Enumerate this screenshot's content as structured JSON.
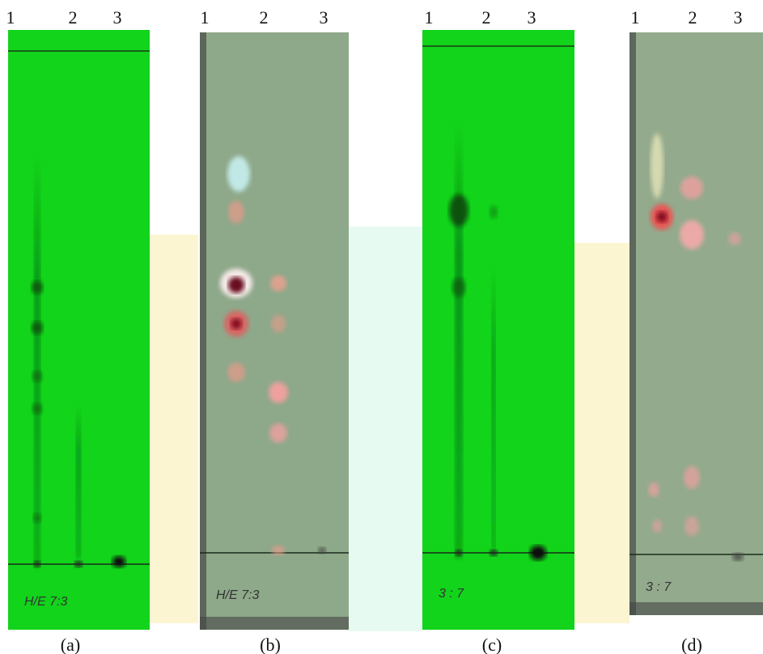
{
  "panels": [
    {
      "lanes": [
        "1",
        "2",
        "3"
      ],
      "caption": "(a)",
      "note": "H/E 7:3"
    },
    {
      "lanes": [
        "1",
        "2",
        "3"
      ],
      "caption": "(b)",
      "note": "H/E 7:3"
    },
    {
      "lanes": [
        "1",
        "2",
        "3"
      ],
      "caption": "(c)",
      "note": "3 : 7"
    },
    {
      "lanes": [
        "1",
        "2",
        "3"
      ],
      "caption": "(d)",
      "note": "3 : 7"
    }
  ]
}
